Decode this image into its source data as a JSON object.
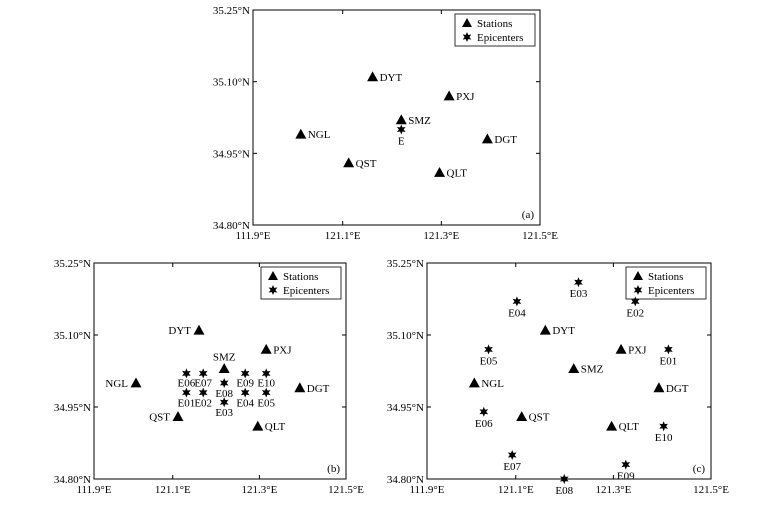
{
  "chart_data": [
    {
      "type": "scatter",
      "panel_label": "(a)",
      "xlim": [
        111.9,
        121.5
      ],
      "ylim": [
        34.8,
        35.25
      ],
      "xticks": [
        "111.9°E",
        "121.1°E",
        "121.3°E",
        "121.5°E"
      ],
      "yticks": [
        "35.25°N",
        "35.10°N",
        "34.95°N",
        "34.80°N"
      ],
      "legend": {
        "position": "top-right",
        "entries": [
          "Stations",
          "Epicenters"
        ]
      },
      "stations": [
        {
          "name": "DYT",
          "x": 121.15,
          "y": 35.11
        },
        {
          "name": "PXJ",
          "x": 121.31,
          "y": 35.07
        },
        {
          "name": "SMZ",
          "x": 121.21,
          "y": 35.02
        },
        {
          "name": "NGL",
          "x": 121.0,
          "y": 34.99
        },
        {
          "name": "DGT",
          "x": 121.39,
          "y": 34.98
        },
        {
          "name": "QST",
          "x": 121.1,
          "y": 34.93
        },
        {
          "name": "QLT",
          "x": 121.29,
          "y": 34.91
        }
      ],
      "epicenters": [
        {
          "name": "E",
          "x": 121.21,
          "y": 35.0
        }
      ]
    },
    {
      "type": "scatter",
      "panel_label": "(b)",
      "xlim": [
        111.9,
        121.5
      ],
      "ylim": [
        34.8,
        35.25
      ],
      "xticks": [
        "111.9°E",
        "121.1°E",
        "121.3°E",
        "121.5°E"
      ],
      "yticks": [
        "35.25°N",
        "35.10°N",
        "34.95°N",
        "34.80°N"
      ],
      "legend": {
        "position": "top-right",
        "entries": [
          "Stations",
          "Epicenters"
        ]
      },
      "stations": [
        {
          "name": "DYT",
          "x": 121.15,
          "y": 35.11
        },
        {
          "name": "PXJ",
          "x": 121.31,
          "y": 35.07
        },
        {
          "name": "SMZ",
          "x": 121.21,
          "y": 35.03
        },
        {
          "name": "NGL",
          "x": 121.0,
          "y": 35.0
        },
        {
          "name": "DGT",
          "x": 121.39,
          "y": 34.99
        },
        {
          "name": "QST",
          "x": 121.1,
          "y": 34.93
        },
        {
          "name": "QLT",
          "x": 121.29,
          "y": 34.91
        }
      ],
      "epicenters": [
        {
          "name": "E06",
          "x": 121.12,
          "y": 35.02
        },
        {
          "name": "E07",
          "x": 121.16,
          "y": 35.02
        },
        {
          "name": "E09",
          "x": 121.26,
          "y": 35.02
        },
        {
          "name": "E10",
          "x": 121.31,
          "y": 35.02
        },
        {
          "name": "E08",
          "x": 121.21,
          "y": 35.0
        },
        {
          "name": "E01",
          "x": 121.12,
          "y": 34.98
        },
        {
          "name": "E02",
          "x": 121.16,
          "y": 34.98
        },
        {
          "name": "E04",
          "x": 121.26,
          "y": 34.98
        },
        {
          "name": "E05",
          "x": 121.31,
          "y": 34.98
        },
        {
          "name": "E03",
          "x": 121.21,
          "y": 34.96
        }
      ]
    },
    {
      "type": "scatter",
      "panel_label": "(c)",
      "xlim": [
        111.9,
        121.5
      ],
      "ylim": [
        34.8,
        35.25
      ],
      "xticks": [
        "111.9°E",
        "121.1°E",
        "121.3°E",
        "121.5°E"
      ],
      "yticks": [
        "35.25°N",
        "35.10°N",
        "34.95°N",
        "34.80°N"
      ],
      "legend": {
        "position": "top-right",
        "entries": [
          "Stations",
          "Epicenters"
        ]
      },
      "stations": [
        {
          "name": "DYT",
          "x": 121.15,
          "y": 35.11
        },
        {
          "name": "PXJ",
          "x": 121.31,
          "y": 35.07
        },
        {
          "name": "SMZ",
          "x": 121.21,
          "y": 35.03
        },
        {
          "name": "NGL",
          "x": 121.0,
          "y": 35.0
        },
        {
          "name": "DGT",
          "x": 121.39,
          "y": 34.99
        },
        {
          "name": "QST",
          "x": 121.1,
          "y": 34.93
        },
        {
          "name": "QLT",
          "x": 121.29,
          "y": 34.91
        }
      ],
      "epicenters": [
        {
          "name": "E03",
          "x": 121.22,
          "y": 35.21
        },
        {
          "name": "E04",
          "x": 121.09,
          "y": 35.17
        },
        {
          "name": "E02",
          "x": 121.34,
          "y": 35.17
        },
        {
          "name": "E05",
          "x": 121.03,
          "y": 35.07
        },
        {
          "name": "E01",
          "x": 121.41,
          "y": 35.07
        },
        {
          "name": "E06",
          "x": 121.02,
          "y": 34.94
        },
        {
          "name": "E10",
          "x": 121.4,
          "y": 34.91
        },
        {
          "name": "E07",
          "x": 121.08,
          "y": 34.85
        },
        {
          "name": "E09",
          "x": 121.32,
          "y": 34.83
        },
        {
          "name": "E08",
          "x": 121.19,
          "y": 34.8
        }
      ]
    }
  ]
}
